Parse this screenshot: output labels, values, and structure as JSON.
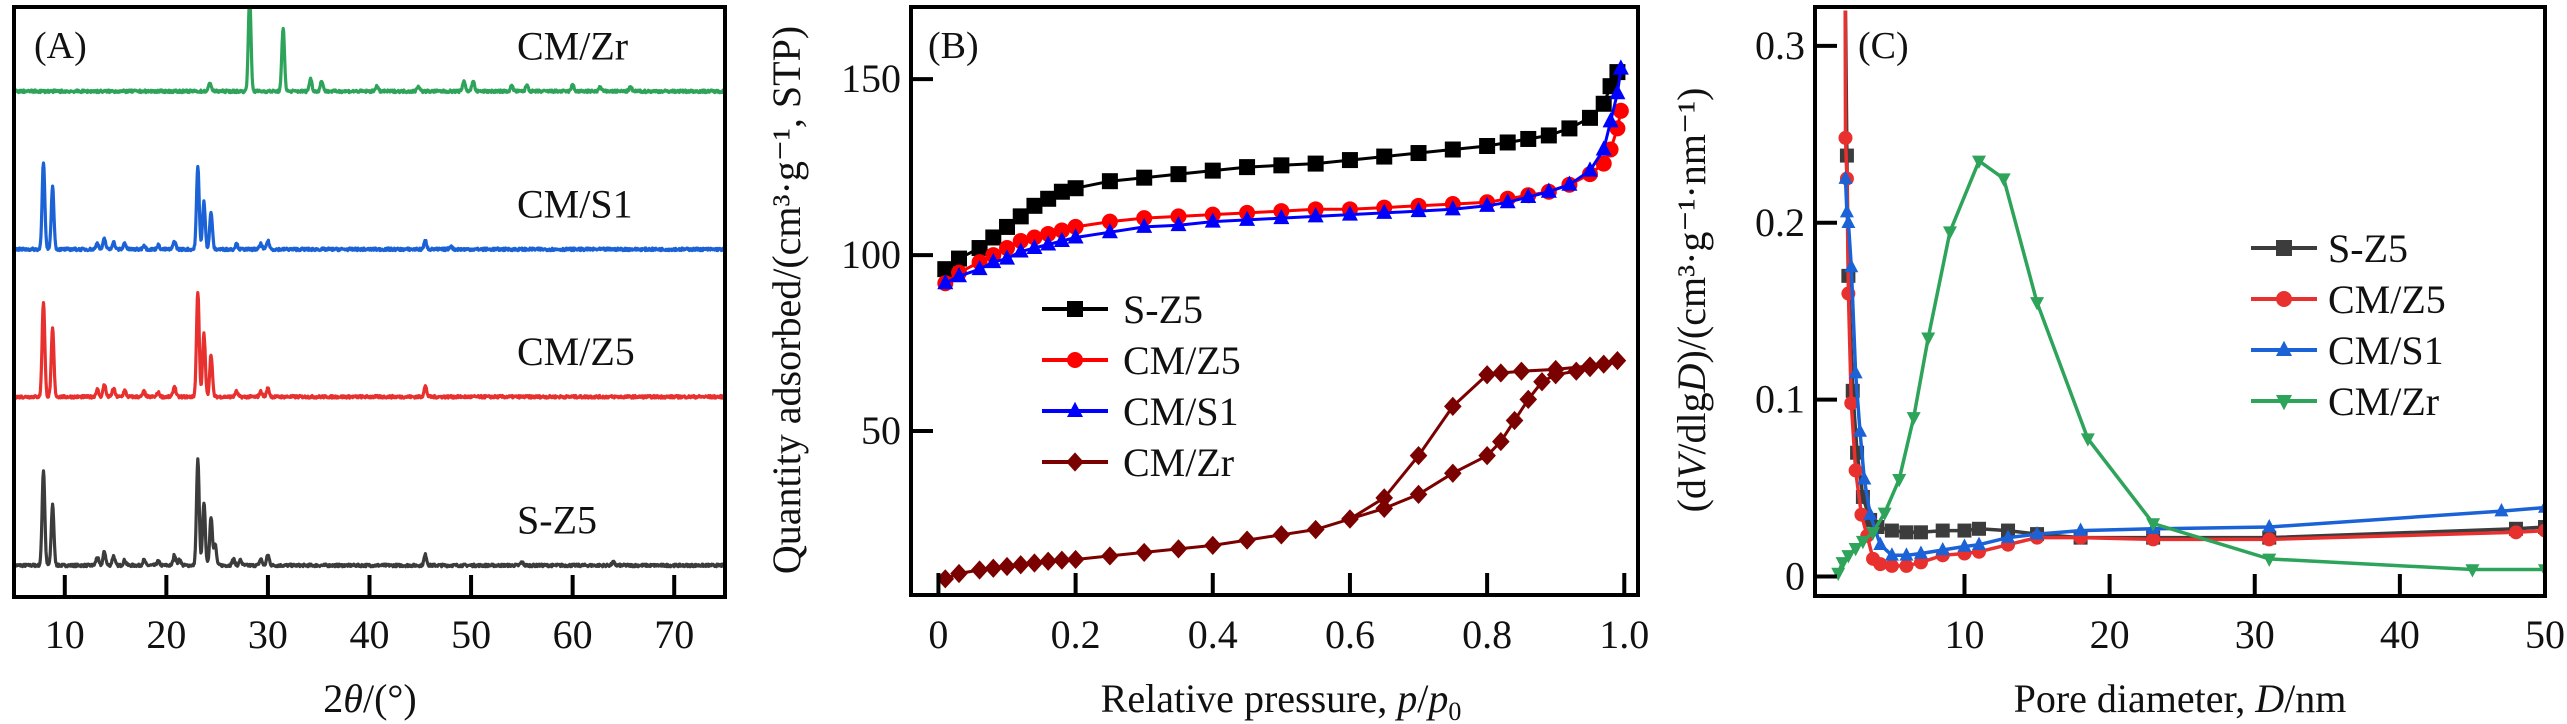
{
  "figure": {
    "panels": [
      "A",
      "B",
      "C"
    ]
  },
  "chart_data": [
    {
      "id": "A",
      "type": "line",
      "panel_label": "(A)",
      "title": "",
      "xlabel": "2θ/(°)",
      "ylabel": "",
      "xlim": [
        5,
        75
      ],
      "ylim": [
        0,
        5.6
      ],
      "xticks": [
        10,
        20,
        30,
        40,
        50,
        60,
        70
      ],
      "xtick_labels": [
        "10",
        "20",
        "30",
        "40",
        "50",
        "60",
        "70"
      ],
      "yticks": [],
      "grid": false,
      "legend": "none",
      "note": "XRD patterns, stacked with vertical offsets; peak positions (2θ) and relative intensities",
      "series": [
        {
          "name": "S-Z5",
          "color": "#3c3c3c",
          "offset": 0.3,
          "peaks": [
            [
              7.9,
              0.9
            ],
            [
              8.8,
              0.58
            ],
            [
              13.2,
              0.08
            ],
            [
              13.9,
              0.13
            ],
            [
              14.8,
              0.09
            ],
            [
              15.9,
              0.05
            ],
            [
              17.8,
              0.05
            ],
            [
              19.2,
              0.04
            ],
            [
              20.8,
              0.1
            ],
            [
              21.3,
              0.06
            ],
            [
              23.1,
              1.0
            ],
            [
              23.7,
              0.6
            ],
            [
              24.4,
              0.46
            ],
            [
              24.8,
              0.2
            ],
            [
              26.6,
              0.06
            ],
            [
              27.3,
              0.05
            ],
            [
              29.3,
              0.06
            ],
            [
              30.0,
              0.1
            ],
            [
              45.5,
              0.1
            ],
            [
              55.0,
              0.03
            ],
            [
              64.0,
              0.03
            ]
          ]
        },
        {
          "name": "CM/Z5",
          "color": "#e8302e",
          "offset": 1.9,
          "peaks": [
            [
              7.9,
              0.9
            ],
            [
              8.8,
              0.65
            ],
            [
              13.2,
              0.07
            ],
            [
              13.9,
              0.12
            ],
            [
              14.8,
              0.08
            ],
            [
              15.9,
              0.06
            ],
            [
              17.8,
              0.05
            ],
            [
              19.2,
              0.04
            ],
            [
              20.8,
              0.1
            ],
            [
              23.1,
              1.0
            ],
            [
              23.7,
              0.6
            ],
            [
              24.4,
              0.4
            ],
            [
              26.9,
              0.05
            ],
            [
              29.3,
              0.05
            ],
            [
              30.0,
              0.08
            ],
            [
              45.5,
              0.1
            ]
          ]
        },
        {
          "name": "CM/S1",
          "color": "#1a62d6",
          "offset": 3.3,
          "peaks": [
            [
              7.9,
              0.82
            ],
            [
              8.8,
              0.6
            ],
            [
              13.2,
              0.06
            ],
            [
              13.9,
              0.1
            ],
            [
              14.8,
              0.07
            ],
            [
              15.9,
              0.06
            ],
            [
              17.8,
              0.04
            ],
            [
              19.2,
              0.04
            ],
            [
              20.8,
              0.08
            ],
            [
              23.1,
              0.78
            ],
            [
              23.7,
              0.45
            ],
            [
              24.4,
              0.35
            ],
            [
              26.9,
              0.05
            ],
            [
              29.3,
              0.05
            ],
            [
              30.0,
              0.08
            ],
            [
              45.5,
              0.08
            ],
            [
              48.0,
              0.03
            ]
          ]
        },
        {
          "name": "CM/Zr",
          "color": "#2ea35a",
          "offset": 4.8,
          "peaks": [
            [
              24.3,
              0.08
            ],
            [
              28.2,
              0.9
            ],
            [
              31.5,
              0.6
            ],
            [
              34.2,
              0.12
            ],
            [
              35.3,
              0.1
            ],
            [
              40.7,
              0.05
            ],
            [
              44.8,
              0.05
            ],
            [
              49.3,
              0.1
            ],
            [
              50.2,
              0.1
            ],
            [
              54.0,
              0.05
            ],
            [
              55.5,
              0.06
            ],
            [
              60.0,
              0.06
            ],
            [
              62.7,
              0.04
            ],
            [
              65.7,
              0.04
            ]
          ]
        }
      ]
    },
    {
      "id": "B",
      "type": "line",
      "panel_label": "(B)",
      "title": "",
      "xlabel": "Relative pressure, p/p0",
      "xlabel_parts": {
        "main": "Relative pressure, ",
        "var1": "p",
        "slash": "/",
        "var2": "p",
        "sub": "0"
      },
      "ylabel": "Quantity adsorbed/(cm³·g⁻¹, STP)",
      "xlim": [
        -0.04,
        1.02
      ],
      "ylim": [
        3.4,
        170.5
      ],
      "xticks": [
        0,
        0.2,
        0.4,
        0.6,
        0.8,
        1.0
      ],
      "xtick_labels": [
        "0",
        "0.2",
        "0.4",
        "0.6",
        "0.8",
        "1.0"
      ],
      "yticks": [
        50,
        100,
        150
      ],
      "ytick_labels": [
        "50",
        "100",
        "150"
      ],
      "grid": false,
      "legend": "center-left",
      "series": [
        {
          "name": "S-Z5",
          "color": "#000000",
          "marker": "square",
          "x": [
            0.01,
            0.03,
            0.06,
            0.08,
            0.1,
            0.12,
            0.14,
            0.16,
            0.18,
            0.2,
            0.25,
            0.3,
            0.35,
            0.4,
            0.45,
            0.5,
            0.55,
            0.6,
            0.65,
            0.7,
            0.75,
            0.8,
            0.83,
            0.86,
            0.89,
            0.92,
            0.95,
            0.97,
            0.98,
            0.99
          ],
          "y": [
            96,
            99,
            102,
            105,
            108,
            111,
            114,
            116,
            118,
            119,
            121,
            122,
            123,
            124,
            125,
            125.5,
            126,
            127,
            128,
            129,
            130,
            131,
            132,
            133,
            134,
            136,
            139,
            143,
            148,
            152
          ]
        },
        {
          "name": "CM/Z5",
          "color": "#ff0000",
          "marker": "circle",
          "x": [
            0.01,
            0.03,
            0.06,
            0.08,
            0.1,
            0.12,
            0.14,
            0.16,
            0.18,
            0.2,
            0.25,
            0.3,
            0.35,
            0.4,
            0.45,
            0.5,
            0.55,
            0.6,
            0.65,
            0.7,
            0.75,
            0.8,
            0.83,
            0.86,
            0.89,
            0.92,
            0.95,
            0.97,
            0.98,
            0.99,
            0.995
          ],
          "y": [
            92,
            95,
            98,
            100,
            102,
            104,
            105,
            106,
            107,
            108,
            109.5,
            110.5,
            111,
            111.5,
            112,
            112.5,
            113,
            113,
            113.5,
            114,
            114.5,
            115,
            116,
            117,
            118,
            120,
            123,
            126,
            130,
            136,
            141
          ]
        },
        {
          "name": "CM/S1",
          "color": "#0000ff",
          "marker": "triangle-up",
          "x": [
            0.01,
            0.03,
            0.06,
            0.08,
            0.1,
            0.12,
            0.14,
            0.16,
            0.18,
            0.2,
            0.25,
            0.3,
            0.35,
            0.4,
            0.45,
            0.5,
            0.55,
            0.6,
            0.65,
            0.7,
            0.75,
            0.8,
            0.83,
            0.86,
            0.89,
            0.92,
            0.95,
            0.97,
            0.98,
            0.99,
            0.995
          ],
          "y": [
            92,
            94,
            96,
            98,
            99,
            101,
            102,
            103,
            104,
            105,
            106.5,
            108,
            108.5,
            109.5,
            110,
            110.5,
            111,
            111.5,
            112,
            112.5,
            113,
            114,
            115,
            116.5,
            118,
            120,
            124,
            130,
            138,
            146,
            153
          ]
        },
        {
          "name": "CM/Zr",
          "color": "#7b0000",
          "marker": "diamond",
          "x": [
            0.01,
            0.03,
            0.06,
            0.08,
            0.1,
            0.12,
            0.14,
            0.16,
            0.18,
            0.2,
            0.25,
            0.3,
            0.35,
            0.4,
            0.45,
            0.5,
            0.55,
            0.6,
            0.65,
            0.7,
            0.75,
            0.8,
            0.82,
            0.84,
            0.86,
            0.88,
            0.9,
            0.93,
            0.95,
            0.97,
            0.99,
            0.95,
            0.9,
            0.85,
            0.82,
            0.8,
            0.75,
            0.7,
            0.65,
            0.6,
            0.55,
            0.5
          ],
          "y": [
            8,
            9.5,
            10.5,
            11,
            11.5,
            12,
            12.5,
            13,
            13.3,
            13.5,
            14.5,
            15.5,
            16.5,
            17.5,
            19,
            20.5,
            22,
            25,
            28,
            32,
            38,
            43,
            47,
            53,
            59,
            64,
            66,
            67,
            68,
            69,
            70,
            68.5,
            67.5,
            67,
            66.5,
            66,
            57,
            43,
            31,
            25,
            22,
            20.5
          ]
        }
      ]
    },
    {
      "id": "C",
      "type": "line",
      "panel_label": "(C)",
      "title": "",
      "xlabel": "Pore diameter, D/nm",
      "xlabel_parts": {
        "main": "Pore diameter, ",
        "var": "D",
        "unit": "/nm"
      },
      "ylabel": "(dV/dlgD)/(cm³·g⁻¹·nm⁻¹)",
      "xlim": [
        -0.3,
        50
      ],
      "ylim": [
        -0.011,
        0.322
      ],
      "xticks": [
        10,
        20,
        30,
        40,
        50
      ],
      "xtick_labels": [
        "10",
        "20",
        "30",
        "40",
        "50"
      ],
      "yticks": [
        0,
        0.1,
        0.2,
        0.3
      ],
      "ytick_labels": [
        "0",
        "0.1",
        "0.2",
        "0.3"
      ],
      "grid": false,
      "legend": "center-right",
      "series": [
        {
          "name": "S-Z5",
          "color": "#3c3c3c",
          "marker": "square",
          "x": [
            1.8,
            1.9,
            2.0,
            2.3,
            2.6,
            3.0,
            3.5,
            4.0,
            5,
            6,
            7,
            8.5,
            10,
            11,
            13,
            15,
            18,
            23,
            31,
            48,
            50
          ],
          "y": [
            0.32,
            0.238,
            0.17,
            0.105,
            0.07,
            0.045,
            0.032,
            0.028,
            0.026,
            0.025,
            0.025,
            0.026,
            0.026,
            0.027,
            0.026,
            0.024,
            0.022,
            0.022,
            0.022,
            0.027,
            0.028
          ]
        },
        {
          "name": "CM/Z5",
          "color": "#e8302e",
          "marker": "circle",
          "x": [
            1.78,
            1.8,
            1.9,
            2.0,
            2.2,
            2.5,
            2.9,
            3.3,
            3.7,
            4.2,
            5,
            6,
            7,
            8.5,
            10,
            11,
            13,
            15,
            18,
            23,
            31,
            48,
            50
          ],
          "y": [
            0.32,
            0.248,
            0.225,
            0.16,
            0.098,
            0.06,
            0.035,
            0.023,
            0.01,
            0.007,
            0.006,
            0.006,
            0.008,
            0.012,
            0.013,
            0.014,
            0.018,
            0.022,
            0.022,
            0.021,
            0.021,
            0.025,
            0.026
          ]
        },
        {
          "name": "CM/S1",
          "color": "#1a62d6",
          "marker": "triangle-up",
          "x": [
            1.8,
            1.9,
            2.0,
            2.2,
            2.5,
            2.8,
            3.1,
            3.5,
            4.2,
            5,
            6,
            7,
            8.5,
            10,
            11,
            13,
            15,
            18,
            23,
            31,
            47,
            50
          ],
          "y": [
            0.225,
            0.206,
            0.2,
            0.175,
            0.115,
            0.082,
            0.055,
            0.035,
            0.018,
            0.012,
            0.012,
            0.013,
            0.015,
            0.017,
            0.018,
            0.022,
            0.024,
            0.026,
            0.027,
            0.028,
            0.037,
            0.039
          ]
        },
        {
          "name": "CM/Zr",
          "color": "#2ea35a",
          "marker": "triangle-down",
          "x": [
            1.3,
            1.6,
            2.0,
            2.5,
            3.0,
            3.7,
            4.5,
            5.5,
            6.5,
            7.5,
            9,
            11,
            12.7,
            15,
            18.5,
            23,
            31,
            45,
            50
          ],
          "y": [
            0.002,
            0.008,
            0.012,
            0.016,
            0.02,
            0.025,
            0.036,
            0.055,
            0.09,
            0.135,
            0.195,
            0.235,
            0.225,
            0.155,
            0.078,
            0.03,
            0.01,
            0.004,
            0.004
          ]
        }
      ]
    }
  ]
}
